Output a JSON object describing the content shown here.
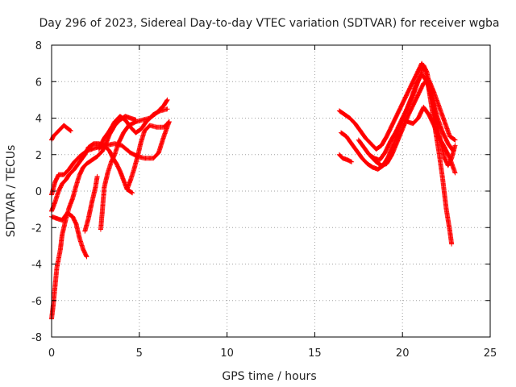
{
  "chart_data": {
    "type": "scatter",
    "title": "Day 296 of 2023, Sidereal Day-to-day VTEC variation (SDTVAR) for receiver wgba",
    "xlabel": "GPS time / hours",
    "ylabel": "SDTVAR / TECUs",
    "xlim": [
      0,
      25
    ],
    "ylim": [
      -8,
      8
    ],
    "xticks": [
      "0",
      "5",
      "10",
      "15",
      "20",
      "25"
    ],
    "yticks": [
      "-8",
      "-6",
      "-4",
      "-2",
      "0",
      "2",
      "4",
      "6",
      "8"
    ],
    "grid": true,
    "marker": "plus",
    "color": "#ff0000",
    "tracks": [
      [
        [
          0.0,
          2.8
        ],
        [
          0.1,
          3.0
        ],
        [
          0.4,
          3.3
        ],
        [
          0.7,
          3.6
        ],
        [
          1.1,
          3.3
        ]
      ],
      [
        [
          0.0,
          -0.2
        ],
        [
          0.2,
          0.5
        ],
        [
          0.4,
          0.9
        ],
        [
          0.7,
          0.9
        ],
        [
          1.0,
          1.2
        ],
        [
          1.3,
          1.6
        ],
        [
          1.6,
          1.9
        ],
        [
          2.0,
          2.2
        ],
        [
          2.6,
          2.4
        ],
        [
          3.1,
          2.5
        ],
        [
          3.6,
          2.6
        ],
        [
          4.0,
          2.5
        ],
        [
          4.5,
          2.1
        ],
        [
          4.9,
          1.9
        ],
        [
          5.3,
          1.8
        ],
        [
          5.8,
          1.8
        ],
        [
          6.1,
          2.1
        ],
        [
          6.4,
          3.0
        ],
        [
          6.7,
          3.8
        ]
      ],
      [
        [
          0.0,
          -1.4
        ],
        [
          0.3,
          -1.5
        ],
        [
          0.6,
          -1.6
        ],
        [
          0.9,
          -1.2
        ],
        [
          1.2,
          -1.4
        ],
        [
          1.4,
          -1.8
        ],
        [
          1.6,
          -2.6
        ],
        [
          1.8,
          -3.2
        ],
        [
          2.0,
          -3.6
        ]
      ],
      [
        [
          0.0,
          -7.0
        ],
        [
          0.1,
          -6.2
        ],
        [
          0.2,
          -5.2
        ],
        [
          0.3,
          -4.2
        ],
        [
          0.5,
          -3.2
        ],
        [
          0.6,
          -2.4
        ],
        [
          0.8,
          -1.6
        ],
        [
          1.0,
          -0.9
        ],
        [
          1.2,
          -0.4
        ],
        [
          1.4,
          0.3
        ],
        [
          1.6,
          0.9
        ],
        [
          1.8,
          1.3
        ],
        [
          2.0,
          1.5
        ],
        [
          2.3,
          1.7
        ],
        [
          2.6,
          1.9
        ],
        [
          2.9,
          2.2
        ],
        [
          3.1,
          2.6
        ],
        [
          3.3,
          3.1
        ],
        [
          3.6,
          3.6
        ],
        [
          3.9,
          3.9
        ],
        [
          4.2,
          4.1
        ],
        [
          4.5,
          4.0
        ],
        [
          4.8,
          3.9
        ]
      ],
      [
        [
          0.0,
          -1.1
        ],
        [
          0.2,
          -0.6
        ],
        [
          0.4,
          0.0
        ],
        [
          0.6,
          0.4
        ],
        [
          0.8,
          0.6
        ],
        [
          1.0,
          0.9
        ],
        [
          1.3,
          1.2
        ],
        [
          1.6,
          1.6
        ],
        [
          1.9,
          2.0
        ],
        [
          2.1,
          2.4
        ],
        [
          2.4,
          2.6
        ],
        [
          2.7,
          2.6
        ],
        [
          3.0,
          2.5
        ],
        [
          3.3,
          2.2
        ],
        [
          3.5,
          1.8
        ],
        [
          3.7,
          1.5
        ],
        [
          3.9,
          1.1
        ],
        [
          4.1,
          0.6
        ],
        [
          4.3,
          0.1
        ],
        [
          4.6,
          -0.1
        ]
      ],
      [
        [
          1.9,
          -2.2
        ],
        [
          2.1,
          -1.5
        ],
        [
          2.3,
          -0.6
        ],
        [
          2.5,
          0.2
        ],
        [
          2.6,
          0.8
        ]
      ],
      [
        [
          2.8,
          -2.1
        ],
        [
          2.9,
          -1.0
        ],
        [
          3.0,
          0.2
        ],
        [
          3.2,
          1.0
        ],
        [
          3.4,
          1.6
        ],
        [
          3.6,
          2.0
        ],
        [
          3.8,
          2.6
        ],
        [
          4.1,
          3.2
        ],
        [
          4.4,
          3.6
        ],
        [
          4.8,
          3.8
        ],
        [
          5.2,
          3.9
        ],
        [
          5.6,
          4.0
        ],
        [
          6.0,
          4.3
        ],
        [
          6.4,
          4.7
        ],
        [
          6.6,
          5.0
        ]
      ],
      [
        [
          2.7,
          2.3
        ],
        [
          3.0,
          2.9
        ],
        [
          3.3,
          3.3
        ],
        [
          3.6,
          3.8
        ],
        [
          3.9,
          4.1
        ],
        [
          4.2,
          3.9
        ],
        [
          4.5,
          3.5
        ],
        [
          4.8,
          3.2
        ],
        [
          5.1,
          3.4
        ],
        [
          5.4,
          3.8
        ],
        [
          5.8,
          4.2
        ],
        [
          6.2,
          4.4
        ],
        [
          6.6,
          4.5
        ]
      ],
      [
        [
          4.3,
          0.1
        ],
        [
          4.5,
          0.6
        ],
        [
          4.7,
          1.2
        ],
        [
          4.9,
          1.9
        ],
        [
          5.1,
          2.7
        ],
        [
          5.3,
          3.3
        ],
        [
          5.6,
          3.6
        ],
        [
          6.0,
          3.5
        ],
        [
          6.4,
          3.5
        ],
        [
          6.7,
          3.8
        ]
      ],
      [
        [
          16.4,
          4.4
        ],
        [
          16.7,
          4.2
        ],
        [
          17.0,
          4.0
        ],
        [
          17.3,
          3.7
        ],
        [
          17.6,
          3.3
        ],
        [
          17.9,
          2.9
        ],
        [
          18.2,
          2.6
        ],
        [
          18.5,
          2.3
        ],
        [
          18.8,
          2.5
        ],
        [
          19.1,
          3.0
        ],
        [
          19.4,
          3.6
        ],
        [
          19.7,
          4.2
        ],
        [
          20.0,
          4.8
        ],
        [
          20.3,
          5.4
        ],
        [
          20.6,
          6.0
        ],
        [
          20.9,
          6.6
        ],
        [
          21.1,
          7.0
        ],
        [
          21.3,
          6.6
        ],
        [
          21.5,
          5.6
        ],
        [
          21.7,
          4.4
        ],
        [
          21.9,
          3.2
        ],
        [
          22.1,
          2.0
        ],
        [
          22.3,
          0.6
        ],
        [
          22.5,
          -1.0
        ],
        [
          22.7,
          -2.2
        ],
        [
          22.8,
          -2.9
        ]
      ],
      [
        [
          16.5,
          3.2
        ],
        [
          16.8,
          3.0
        ],
        [
          17.1,
          2.6
        ],
        [
          17.4,
          2.2
        ],
        [
          17.7,
          1.8
        ],
        [
          18.0,
          1.5
        ],
        [
          18.3,
          1.3
        ],
        [
          18.6,
          1.2
        ],
        [
          18.9,
          1.4
        ],
        [
          19.2,
          1.9
        ],
        [
          19.5,
          2.6
        ],
        [
          19.8,
          3.4
        ],
        [
          20.1,
          4.1
        ],
        [
          20.4,
          4.8
        ],
        [
          20.7,
          5.5
        ],
        [
          21.0,
          6.3
        ],
        [
          21.2,
          6.9
        ],
        [
          21.4,
          6.5
        ],
        [
          21.6,
          5.5
        ],
        [
          21.8,
          4.6
        ],
        [
          22.0,
          3.6
        ],
        [
          22.2,
          2.6
        ],
        [
          22.4,
          1.8
        ],
        [
          22.6,
          1.4
        ],
        [
          22.8,
          1.8
        ],
        [
          23.0,
          2.5
        ]
      ],
      [
        [
          16.4,
          2.0
        ],
        [
          16.6,
          1.8
        ],
        [
          16.9,
          1.7
        ],
        [
          17.1,
          1.6
        ]
      ],
      [
        [
          17.5,
          2.8
        ],
        [
          17.8,
          2.4
        ],
        [
          18.1,
          2.0
        ],
        [
          18.4,
          1.8
        ],
        [
          18.7,
          1.7
        ],
        [
          19.0,
          2.1
        ],
        [
          19.3,
          2.7
        ],
        [
          19.6,
          3.2
        ],
        [
          19.9,
          3.8
        ],
        [
          20.2,
          4.4
        ],
        [
          20.5,
          5.1
        ],
        [
          20.8,
          5.9
        ],
        [
          21.1,
          6.4
        ],
        [
          21.4,
          6.0
        ],
        [
          21.7,
          5.0
        ],
        [
          22.0,
          4.0
        ],
        [
          22.3,
          3.2
        ],
        [
          22.6,
          2.6
        ],
        [
          22.9,
          2.2
        ]
      ],
      [
        [
          20.0,
          4.0
        ],
        [
          20.3,
          3.8
        ],
        [
          20.6,
          3.7
        ],
        [
          20.9,
          4.0
        ],
        [
          21.2,
          4.6
        ],
        [
          21.5,
          4.2
        ],
        [
          21.8,
          3.6
        ],
        [
          22.1,
          2.9
        ],
        [
          22.4,
          2.4
        ],
        [
          22.7,
          1.8
        ],
        [
          23.0,
          1.0
        ]
      ],
      [
        [
          18.2,
          1.9
        ],
        [
          18.5,
          1.6
        ],
        [
          18.8,
          1.4
        ],
        [
          19.1,
          1.5
        ],
        [
          19.4,
          2.0
        ],
        [
          19.7,
          2.7
        ],
        [
          20.0,
          3.4
        ],
        [
          20.3,
          4.1
        ],
        [
          20.6,
          4.7
        ],
        [
          20.9,
          5.3
        ],
        [
          21.2,
          5.9
        ],
        [
          21.5,
          6.1
        ],
        [
          21.8,
          5.4
        ],
        [
          22.1,
          4.6
        ],
        [
          22.4,
          3.8
        ],
        [
          22.7,
          3.0
        ],
        [
          23.0,
          2.8
        ]
      ]
    ]
  }
}
